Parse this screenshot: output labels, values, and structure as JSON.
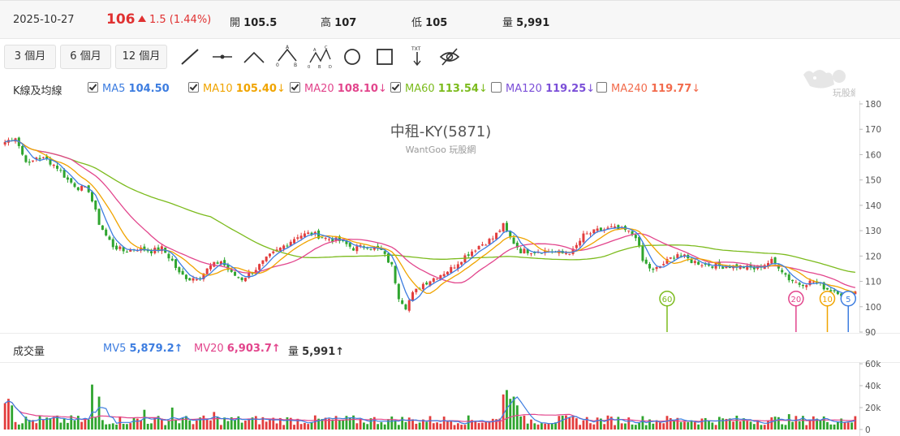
{
  "header": {
    "date": "2025-10-27",
    "price": "106",
    "change": "1.5 (1.44%)",
    "open_label": "開",
    "open_value": "105.5",
    "high_label": "高",
    "high_value": "107",
    "low_label": "低",
    "low_value": "105",
    "volume_label": "量",
    "volume_value": "5,991"
  },
  "toolbar": {
    "periods": [
      "3 個月",
      "6 個月",
      "12 個月"
    ],
    "tools": [
      "trend-line-icon",
      "horizontal-line-icon",
      "angle-line-icon",
      "abc-pattern-icon",
      "abcd-pattern-icon",
      "circle-icon",
      "rectangle-icon",
      "text-marker-icon",
      "hide-eye-icon"
    ]
  },
  "ma_legend": {
    "title": "K線及均線",
    "items": [
      {
        "label": "MA5",
        "value": "104.50",
        "arrow": "",
        "checked": true,
        "color": "#3d7de0"
      },
      {
        "label": "MA10",
        "value": "105.40",
        "arrow": "↓",
        "checked": true,
        "color": "#f0a400"
      },
      {
        "label": "MA20",
        "value": "108.10",
        "arrow": "↓",
        "checked": true,
        "color": "#e2458c"
      },
      {
        "label": "MA60",
        "value": "113.54",
        "arrow": "↓",
        "checked": true,
        "color": "#7cbb1d"
      },
      {
        "label": "MA120",
        "value": "119.25",
        "arrow": "↓",
        "checked": false,
        "color": "#7b4fd8"
      },
      {
        "label": "MA240",
        "value": "119.77",
        "arrow": "↓",
        "checked": false,
        "color": "#f26b4c"
      }
    ]
  },
  "vol_legend": {
    "title": "成交量",
    "mv5_label": "MV5",
    "mv5_value": "5,879.2↑",
    "mv20_label": "MV20",
    "mv20_value": "6,903.7↑",
    "vol_label": "量",
    "vol_value": "5,991↑"
  },
  "watermark": {
    "title": "中租-KY(5871)",
    "subtitle": "WantGoo 玩股網",
    "logo_text": "玩股網"
  },
  "colors": {
    "up": "#e23d3d",
    "down": "#2fa52f",
    "ma5": "#3d7de0",
    "ma10": "#f0a400",
    "ma20": "#e2458c",
    "ma60": "#7cbb1d"
  },
  "chart_data": {
    "type": "candlestick",
    "price_axis": {
      "ticks": [
        180,
        170,
        160,
        150,
        140,
        130,
        120,
        110,
        100,
        90
      ],
      "ylim": [
        90,
        180
      ]
    },
    "volume_axis": {
      "ticks": [
        "60k",
        "40k",
        "20k",
        "0"
      ],
      "ylim": [
        0,
        60000
      ]
    },
    "ma_markers": [
      {
        "label": "60",
        "index": 190,
        "price": 100,
        "color": "#7cbb1d"
      },
      {
        "label": "20",
        "index": 227,
        "price": 100,
        "color": "#e2458c"
      },
      {
        "label": "10",
        "index": 236,
        "price": 100,
        "color": "#f0a400"
      },
      {
        "label": "5",
        "index": 242,
        "price": 100,
        "color": "#3d7de0"
      }
    ],
    "close_anchors": [
      [
        0,
        165
      ],
      [
        3,
        167
      ],
      [
        5,
        160
      ],
      [
        7,
        156
      ],
      [
        9,
        159
      ],
      [
        12,
        158
      ],
      [
        15,
        155
      ],
      [
        18,
        150
      ],
      [
        21,
        147
      ],
      [
        24,
        146
      ],
      [
        27,
        133
      ],
      [
        29,
        128
      ],
      [
        31,
        124
      ],
      [
        34,
        122
      ],
      [
        38,
        123
      ],
      [
        42,
        122
      ],
      [
        45,
        123
      ],
      [
        48,
        118
      ],
      [
        50,
        113
      ],
      [
        53,
        111
      ],
      [
        56,
        112
      ],
      [
        59,
        116
      ],
      [
        62,
        118
      ],
      [
        65,
        113
      ],
      [
        68,
        111
      ],
      [
        72,
        115
      ],
      [
        76,
        120
      ],
      [
        80,
        124
      ],
      [
        84,
        128
      ],
      [
        88,
        129
      ],
      [
        92,
        127
      ],
      [
        96,
        126
      ],
      [
        100,
        123
      ],
      [
        104,
        124
      ],
      [
        108,
        122
      ],
      [
        111,
        116
      ],
      [
        113,
        104
      ],
      [
        115,
        100
      ],
      [
        117,
        105
      ],
      [
        120,
        109
      ],
      [
        124,
        112
      ],
      [
        128,
        115
      ],
      [
        132,
        120
      ],
      [
        136,
        124
      ],
      [
        140,
        127
      ],
      [
        143,
        132
      ],
      [
        145,
        127
      ],
      [
        148,
        122
      ],
      [
        152,
        122
      ],
      [
        156,
        122
      ],
      [
        160,
        121
      ],
      [
        163,
        122
      ],
      [
        166,
        128
      ],
      [
        170,
        130
      ],
      [
        174,
        131
      ],
      [
        178,
        130
      ],
      [
        181,
        128
      ],
      [
        183,
        118
      ],
      [
        186,
        114
      ],
      [
        189,
        117
      ],
      [
        193,
        121
      ],
      [
        197,
        118
      ],
      [
        200,
        117
      ],
      [
        205,
        116
      ],
      [
        210,
        116
      ],
      [
        215,
        115
      ],
      [
        220,
        118
      ],
      [
        222,
        116
      ],
      [
        225,
        111
      ],
      [
        228,
        109
      ],
      [
        232,
        110
      ],
      [
        236,
        107
      ],
      [
        239,
        106
      ],
      [
        241,
        104
      ],
      [
        243,
        106
      ]
    ],
    "volume_spikes": [
      [
        0,
        24
      ],
      [
        1,
        28
      ],
      [
        2,
        22
      ],
      [
        25,
        41
      ],
      [
        27,
        30
      ],
      [
        40,
        18
      ],
      [
        48,
        20
      ],
      [
        60,
        16
      ],
      [
        143,
        32
      ],
      [
        144,
        36
      ],
      [
        145,
        28
      ],
      [
        146,
        30
      ],
      [
        147,
        22
      ],
      [
        225,
        14
      ],
      [
        232,
        12
      ],
      [
        240,
        10
      ]
    ]
  }
}
